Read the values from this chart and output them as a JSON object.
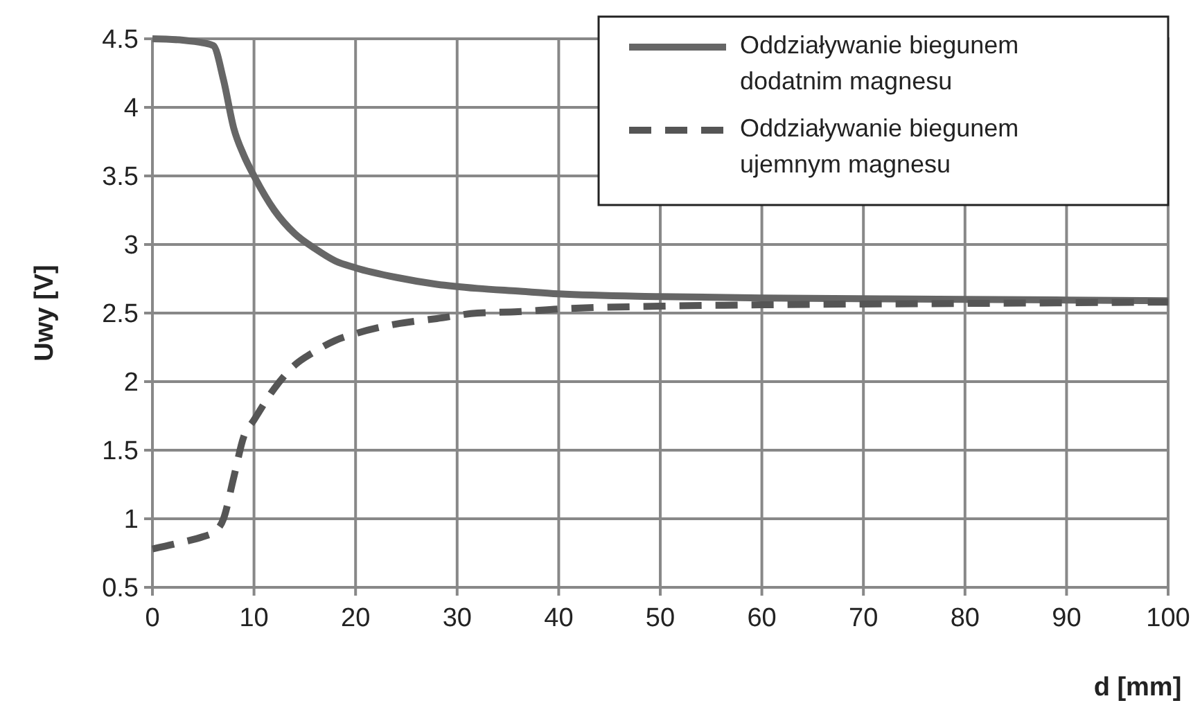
{
  "chart_data": {
    "type": "line",
    "xlabel": "d [mm]",
    "ylabel": "Uwy [V]",
    "xlim": [
      0,
      100
    ],
    "ylim": [
      0.5,
      4.5
    ],
    "xticks": [
      0,
      10,
      20,
      30,
      40,
      50,
      60,
      70,
      80,
      90,
      100
    ],
    "yticks": [
      0.5,
      1,
      1.5,
      2,
      2.5,
      3,
      3.5,
      4,
      4.5
    ],
    "grid": true,
    "legend": "top right",
    "x": [
      0,
      3,
      5,
      6,
      7,
      8,
      9,
      10,
      12,
      14,
      16,
      18,
      20,
      24,
      28,
      32,
      36,
      40,
      50,
      60,
      80,
      100
    ],
    "series": [
      {
        "name": "Oddziaływanie biegunem dodatnim magnesu",
        "color": "#666666",
        "line_style": "solid",
        "values": [
          4.5,
          4.49,
          4.47,
          4.45,
          4.2,
          3.85,
          3.65,
          3.5,
          3.25,
          3.08,
          2.97,
          2.88,
          2.83,
          2.76,
          2.71,
          2.68,
          2.66,
          2.64,
          2.62,
          2.61,
          2.6,
          2.59
        ]
      },
      {
        "name": "Oddziaływanie biegunem ujemnym magnesu",
        "color": "#555555",
        "line_style": "dashed",
        "values": [
          0.78,
          0.83,
          0.87,
          0.9,
          1.0,
          1.3,
          1.6,
          1.72,
          1.95,
          2.12,
          2.22,
          2.3,
          2.35,
          2.42,
          2.46,
          2.5,
          2.51,
          2.53,
          2.55,
          2.56,
          2.57,
          2.58
        ]
      }
    ]
  }
}
